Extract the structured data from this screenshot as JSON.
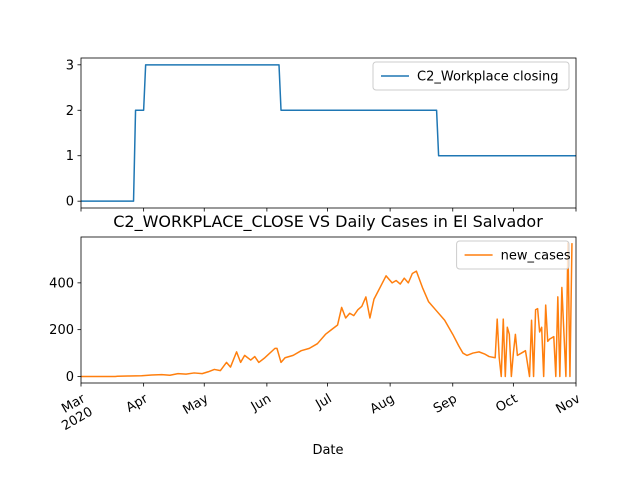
{
  "chart_data": [
    {
      "type": "line",
      "x": [
        "2020-03-01",
        "2020-03-27",
        "2020-03-28",
        "2020-04-01",
        "2020-04-02",
        "2020-06-07",
        "2020-06-08",
        "2020-08-24",
        "2020-08-25",
        "2020-11-01"
      ],
      "series": [
        {
          "name": "C2_Workplace closing",
          "color": "#1f77b4",
          "values": [
            0,
            0,
            2,
            2,
            3,
            3,
            2,
            2,
            1,
            1
          ]
        }
      ],
      "xlim": [
        "2020-03-01",
        "2020-11-01"
      ],
      "xticks": [
        "2020-03-01",
        "2020-04-01",
        "2020-05-01",
        "2020-06-01",
        "2020-07-01",
        "2020-08-01",
        "2020-09-01",
        "2020-10-01",
        "2020-11-01"
      ],
      "ylim": [
        -0.15,
        3.15
      ],
      "yticks": [
        0,
        1,
        2,
        3
      ],
      "legend": "upper right"
    },
    {
      "type": "line",
      "title": "C2_WORKPLACE_CLOSE VS Daily Cases in El Salvador",
      "x_label": "Date",
      "x": [
        "2020-03-01",
        "2020-03-18",
        "2020-03-19",
        "2020-03-25",
        "2020-03-31",
        "2020-04-05",
        "2020-04-10",
        "2020-04-14",
        "2020-04-18",
        "2020-04-22",
        "2020-04-26",
        "2020-04-30",
        "2020-05-03",
        "2020-05-06",
        "2020-05-09",
        "2020-05-12",
        "2020-05-14",
        "2020-05-17",
        "2020-05-19",
        "2020-05-21",
        "2020-05-24",
        "2020-05-26",
        "2020-05-28",
        "2020-05-31",
        "2020-06-05",
        "2020-06-06",
        "2020-06-08",
        "2020-06-10",
        "2020-06-14",
        "2020-06-18",
        "2020-06-22",
        "2020-06-26",
        "2020-06-30",
        "2020-07-03",
        "2020-07-06",
        "2020-07-08",
        "2020-07-10",
        "2020-07-12",
        "2020-07-14",
        "2020-07-16",
        "2020-07-18",
        "2020-07-20",
        "2020-07-22",
        "2020-07-24",
        "2020-07-27",
        "2020-07-30",
        "2020-08-02",
        "2020-08-04",
        "2020-08-06",
        "2020-08-08",
        "2020-08-10",
        "2020-08-12",
        "2020-08-14",
        "2020-08-17",
        "2020-08-20",
        "2020-08-24",
        "2020-08-28",
        "2020-09-01",
        "2020-09-04",
        "2020-09-06",
        "2020-09-08",
        "2020-09-11",
        "2020-09-14",
        "2020-09-17",
        "2020-09-19",
        "2020-09-22",
        "2020-09-23",
        "2020-09-24",
        "2020-09-25",
        "2020-09-26",
        "2020-09-27",
        "2020-09-28",
        "2020-09-29",
        "2020-09-30",
        "2020-10-01",
        "2020-10-02",
        "2020-10-03",
        "2020-10-05",
        "2020-10-07",
        "2020-10-09",
        "2020-10-10",
        "2020-10-11",
        "2020-10-12",
        "2020-10-13",
        "2020-10-14",
        "2020-10-15",
        "2020-10-16",
        "2020-10-17",
        "2020-10-18",
        "2020-10-19",
        "2020-10-21",
        "2020-10-22",
        "2020-10-23",
        "2020-10-24",
        "2020-10-25",
        "2020-10-27",
        "2020-10-28",
        "2020-10-29",
        "2020-10-30"
      ],
      "series": [
        {
          "name": "new_cases",
          "color": "#ff7f0e",
          "values": [
            0,
            0,
            1,
            2,
            3,
            6,
            8,
            5,
            12,
            10,
            15,
            12,
            20,
            30,
            25,
            60,
            40,
            105,
            60,
            90,
            70,
            85,
            60,
            80,
            120,
            120,
            60,
            80,
            90,
            110,
            120,
            140,
            180,
            200,
            220,
            295,
            250,
            270,
            260,
            285,
            300,
            340,
            250,
            330,
            380,
            430,
            400,
            410,
            395,
            420,
            400,
            440,
            450,
            380,
            320,
            280,
            240,
            180,
            130,
            100,
            90,
            100,
            105,
            95,
            85,
            80,
            245,
            80,
            0,
            245,
            0,
            210,
            180,
            0,
            100,
            180,
            90,
            100,
            110,
            0,
            240,
            0,
            285,
            290,
            190,
            210,
            0,
            305,
            150,
            160,
            170,
            0,
            340,
            0,
            380,
            0,
            570,
            0,
            570
          ]
        }
      ],
      "xlim": [
        "2020-03-01",
        "2020-11-01"
      ],
      "xticks": [
        {
          "value": "2020-03-01",
          "label": "Mar 2020"
        },
        {
          "value": "2020-04-01",
          "label": "Apr"
        },
        {
          "value": "2020-05-01",
          "label": "May"
        },
        {
          "value": "2020-06-01",
          "label": "Jun"
        },
        {
          "value": "2020-07-01",
          "label": "Jul"
        },
        {
          "value": "2020-08-01",
          "label": "Aug"
        },
        {
          "value": "2020-09-01",
          "label": "Sep"
        },
        {
          "value": "2020-10-01",
          "label": "Oct"
        },
        {
          "value": "2020-11-01",
          "label": "Nov"
        }
      ],
      "ylim": [
        -28,
        596
      ],
      "yticks": [
        0,
        200,
        400
      ],
      "legend": "upper right"
    }
  ]
}
